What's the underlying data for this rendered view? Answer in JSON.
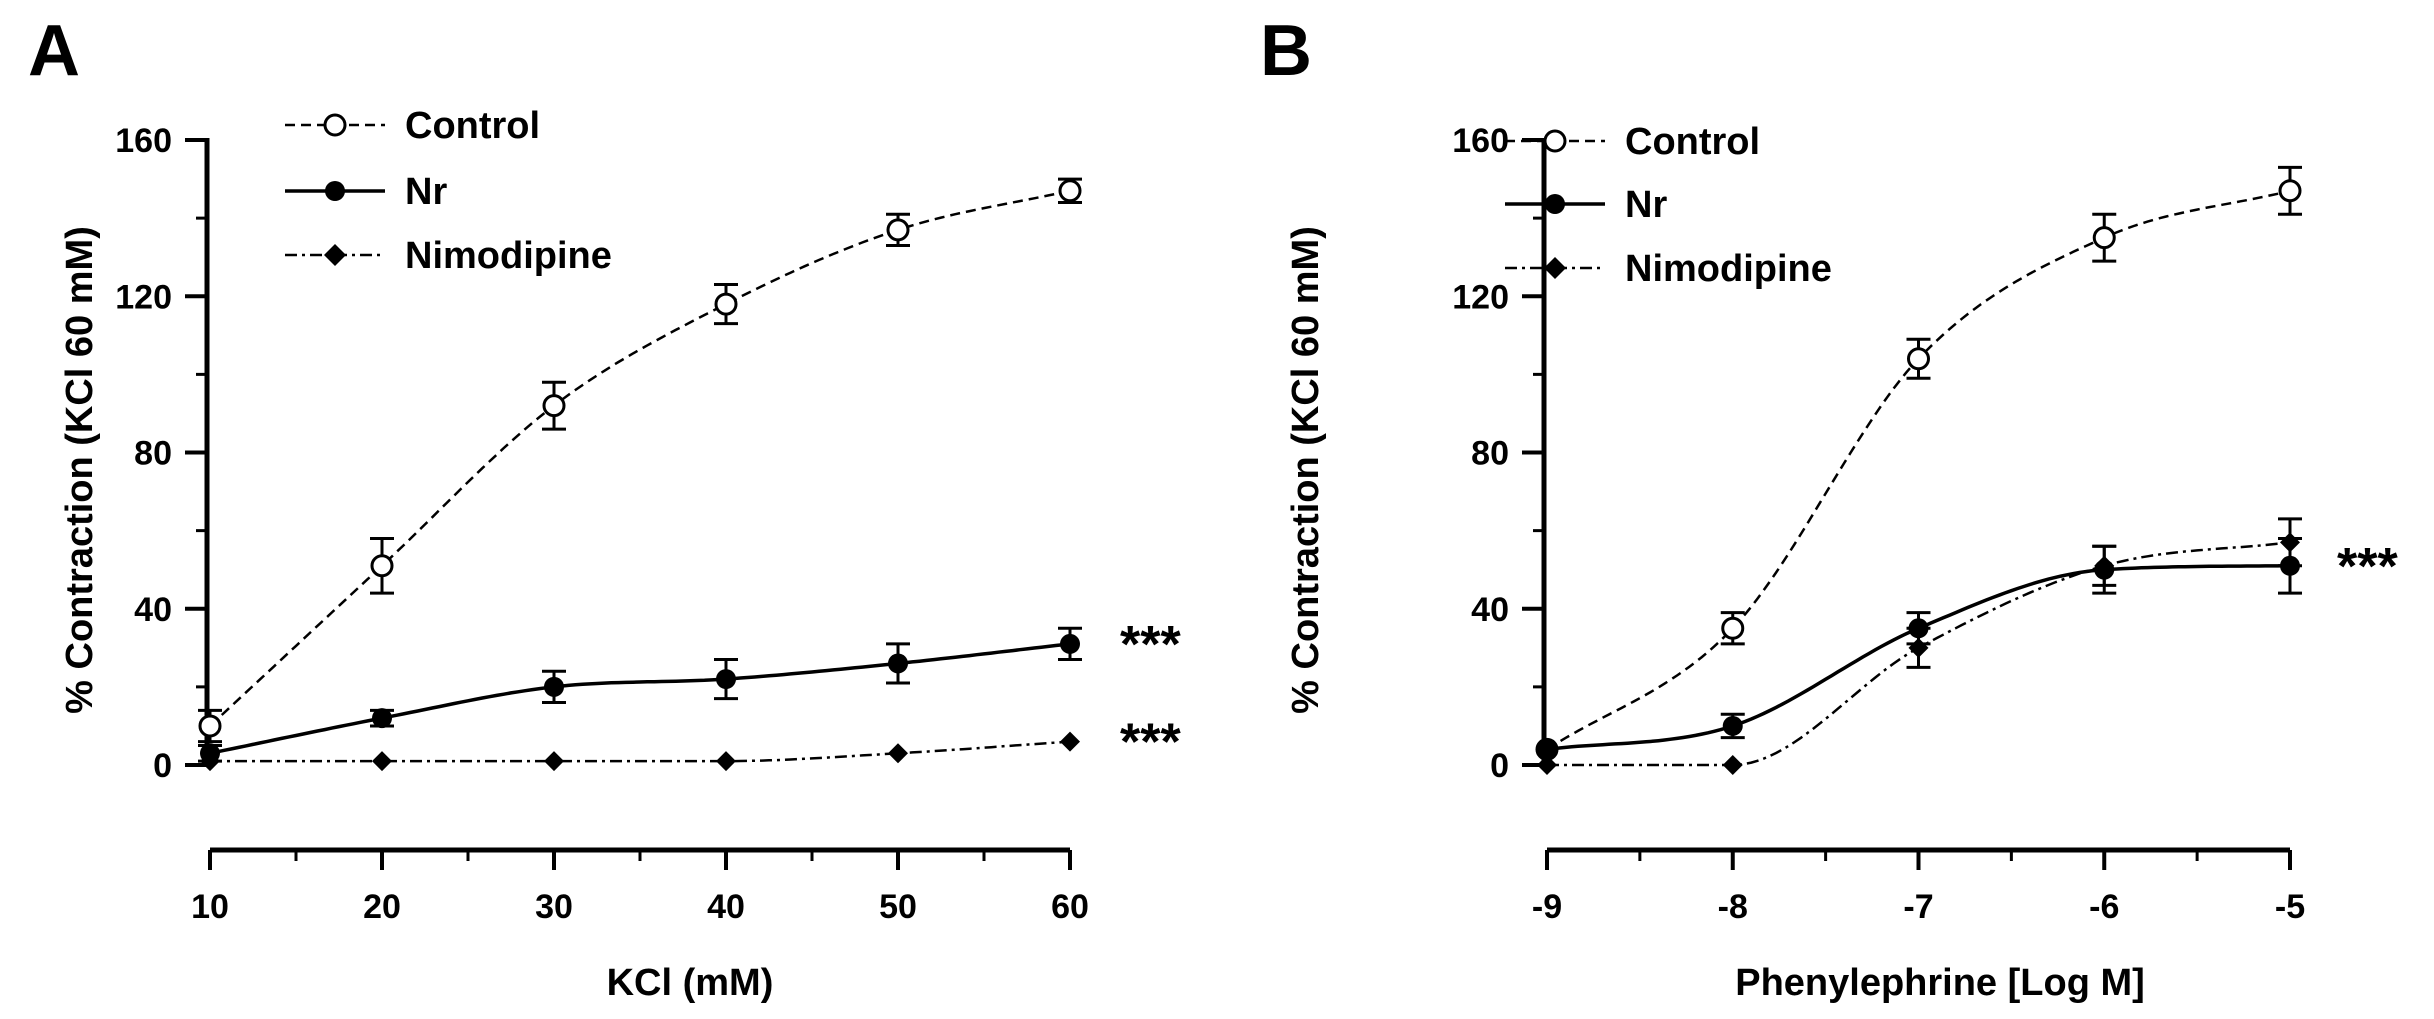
{
  "chart_data": [
    {
      "panel_label": "A",
      "type": "line",
      "xlabel": "KCl (mM)",
      "ylabel": "% Contraction (KCl 60 mM)",
      "xlim": [
        10,
        60
      ],
      "ylim": [
        0,
        160
      ],
      "x_ticks": [
        10,
        20,
        30,
        40,
        50,
        60
      ],
      "x_tick_labels": [
        "10",
        "20",
        "30",
        "40",
        "50",
        "60"
      ],
      "y_ticks": [
        0,
        40,
        80,
        120,
        160
      ],
      "y_tick_labels": [
        "0",
        "40",
        "80",
        "120",
        "160"
      ],
      "x": [
        10,
        20,
        30,
        40,
        50,
        60
      ],
      "series": [
        {
          "name": "Control",
          "marker": "open-circle",
          "line": "dashed",
          "values": [
            10,
            51,
            92,
            118,
            137,
            147
          ],
          "errors": [
            4,
            7,
            6,
            5,
            4,
            3
          ]
        },
        {
          "name": "Nr",
          "marker": "filled-circle",
          "line": "solid",
          "values": [
            3,
            12,
            20,
            22,
            26,
            31
          ],
          "errors": [
            2,
            2,
            4,
            5,
            5,
            4
          ]
        },
        {
          "name": "Nimodipine",
          "marker": "filled-diamond",
          "line": "dash-dot",
          "values": [
            1,
            1,
            1,
            1,
            3,
            6
          ],
          "errors": [
            0,
            0,
            0,
            0,
            0,
            0
          ]
        }
      ],
      "annotations": [
        {
          "text": "***",
          "series": "Nr"
        },
        {
          "text": "***",
          "series": "Nimodipine"
        }
      ],
      "legend_placement": "top-left"
    },
    {
      "panel_label": "B",
      "type": "line",
      "xlabel": "Phenylephrine [Log M]",
      "ylabel": "% Contraction (KCl 60 mM)",
      "xlim": [
        -9,
        -5
      ],
      "ylim": [
        0,
        160
      ],
      "x_ticks": [
        -9,
        -8,
        -7,
        -6,
        -5
      ],
      "x_tick_labels": [
        "-9",
        "-8",
        "-7",
        "-6",
        "-5"
      ],
      "y_ticks": [
        0,
        40,
        80,
        120,
        160
      ],
      "y_tick_labels": [
        "0",
        "40",
        "80",
        "120",
        "160"
      ],
      "x": [
        -9,
        -8,
        -7,
        -6,
        -5
      ],
      "series": [
        {
          "name": "Control",
          "marker": "open-circle",
          "line": "dashed",
          "values": [
            4,
            35,
            104,
            135,
            147
          ],
          "errors": [
            0,
            4,
            5,
            6,
            6
          ]
        },
        {
          "name": "Nr",
          "marker": "filled-circle",
          "line": "solid",
          "values": [
            4,
            10,
            35,
            50,
            51
          ],
          "errors": [
            0,
            3,
            4,
            6,
            7
          ]
        },
        {
          "name": "Nimodipine",
          "marker": "filled-diamond",
          "line": "dash-dot",
          "values": [
            0,
            0,
            30,
            51,
            57
          ],
          "errors": [
            0,
            0,
            5,
            5,
            6
          ]
        }
      ],
      "annotations": [
        {
          "text": "***",
          "series": "Nr"
        }
      ],
      "legend_placement": "top-left"
    }
  ]
}
